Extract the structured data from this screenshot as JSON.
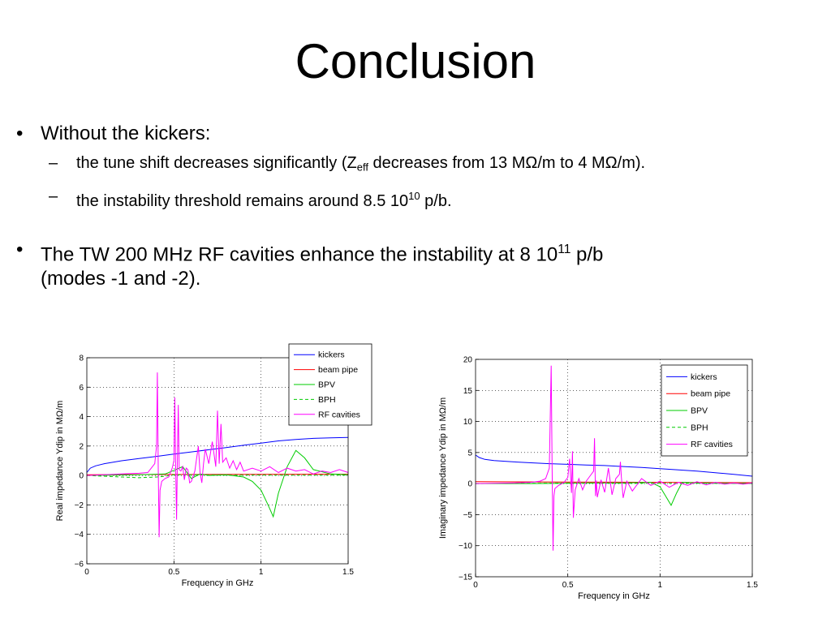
{
  "slide": {
    "title": "Conclusion",
    "bullet1": "Without the kickers:",
    "sub1_a": "the tune shift decreases significantly (Z",
    "sub1_sub": "eff",
    "sub1_b": " decreases from 13 M",
    "sub1_omega1": "Ω",
    "sub1_c": "/m to 4 M",
    "sub1_omega2": "Ω",
    "sub1_d": "/m).",
    "sub2_a": "the instability threshold remains around 8.5 10",
    "sub2_sup": "10",
    "sub2_b": " p/b.",
    "bullet2_a": "The TW 200 MHz RF cavities enhance the instability at 8 10",
    "bullet2_sup": "11",
    "bullet2_b": " p/b",
    "bullet2_line2": "(modes -1 and -2).",
    "bullet_mark": "•",
    "dash_mark": "–"
  },
  "chart_data": [
    {
      "type": "line",
      "xlabel": "Frequency in GHz",
      "ylabel": "Real impedance Ydip in MΩ/m",
      "xlim": [
        0,
        1.5
      ],
      "ylim": [
        -6,
        8
      ],
      "xticks": [
        0,
        0.5,
        1,
        1.5
      ],
      "xtick_labels": [
        "0",
        "0.5",
        "1",
        "1.5"
      ],
      "yticks": [
        -6,
        -4,
        -2,
        0,
        2,
        4,
        6,
        8
      ],
      "ytick_labels": [
        "−6",
        "−4",
        "−2",
        "0",
        "2",
        "4",
        "6",
        "8"
      ],
      "grid": true,
      "legend_position": "top-right",
      "series": [
        {
          "name": "kickers",
          "color": "#0000ff",
          "style": "solid",
          "x": [
            0,
            0.02,
            0.05,
            0.1,
            0.2,
            0.3,
            0.4,
            0.5,
            0.6,
            0.7,
            0.8,
            0.9,
            1.0,
            1.1,
            1.2,
            1.3,
            1.4,
            1.5
          ],
          "y": [
            0.2,
            0.5,
            0.65,
            0.8,
            1.0,
            1.15,
            1.3,
            1.45,
            1.6,
            1.75,
            1.9,
            2.05,
            2.2,
            2.35,
            2.45,
            2.52,
            2.56,
            2.58
          ]
        },
        {
          "name": "beam pipe",
          "color": "#ff0000",
          "style": "solid",
          "x": [
            0,
            0.5,
            1.0,
            1.5
          ],
          "y": [
            0.05,
            0.07,
            0.08,
            0.09
          ]
        },
        {
          "name": "BPV",
          "color": "#00cc00",
          "style": "solid",
          "x": [
            0,
            0.3,
            0.45,
            0.55,
            0.6,
            0.65,
            0.7,
            0.8,
            0.9,
            0.95,
            1.0,
            1.04,
            1.07,
            1.1,
            1.15,
            1.2,
            1.25,
            1.3,
            1.4,
            1.5
          ],
          "y": [
            0,
            0.05,
            0.1,
            0.6,
            -0.2,
            0.1,
            0,
            0.05,
            -0.1,
            -0.4,
            -1.0,
            -2.0,
            -2.8,
            -1.2,
            0.6,
            1.7,
            1.2,
            0.4,
            0.1,
            0.05
          ]
        },
        {
          "name": "BPH",
          "color": "#00cc00",
          "style": "dashed",
          "x": [
            0,
            0.2,
            0.3,
            0.4,
            0.45,
            0.5,
            0.6,
            0.8,
            1.0,
            1.2,
            1.5
          ],
          "y": [
            0,
            -0.1,
            -0.15,
            -0.1,
            -0.05,
            0.05,
            0.05,
            0.02,
            0.03,
            0.02,
            0.02
          ]
        },
        {
          "name": "RF cavities",
          "color": "#ff00ff",
          "style": "solid",
          "x": [
            0,
            0.1,
            0.2,
            0.3,
            0.35,
            0.39,
            0.4,
            0.405,
            0.41,
            0.415,
            0.42,
            0.43,
            0.45,
            0.47,
            0.49,
            0.5,
            0.505,
            0.51,
            0.515,
            0.52,
            0.525,
            0.53,
            0.54,
            0.55,
            0.56,
            0.57,
            0.58,
            0.59,
            0.6,
            0.62,
            0.64,
            0.65,
            0.66,
            0.67,
            0.68,
            0.7,
            0.72,
            0.74,
            0.75,
            0.76,
            0.77,
            0.78,
            0.8,
            0.82,
            0.84,
            0.86,
            0.88,
            0.9,
            0.95,
            1.0,
            1.05,
            1.1,
            1.15,
            1.2,
            1.25,
            1.3,
            1.35,
            1.4,
            1.45,
            1.5
          ],
          "y": [
            0,
            0.05,
            0.1,
            0.15,
            0.2,
            0.8,
            2.0,
            7.0,
            0.5,
            -4.2,
            -1.0,
            -0.4,
            -0.2,
            -0.1,
            0.5,
            1.0,
            5.3,
            0.5,
            -3.0,
            1.2,
            4.8,
            0.4,
            0.3,
            0.6,
            -0.3,
            0.5,
            0.4,
            -0.5,
            -0.4,
            0.3,
            2.0,
            0.2,
            -0.5,
            0.8,
            1.8,
            0.8,
            2.3,
            0.6,
            4.4,
            0.8,
            3.5,
            0.9,
            1.2,
            0.5,
            1.0,
            0.4,
            0.9,
            0.3,
            0.5,
            0.3,
            0.6,
            0.2,
            0.5,
            0.3,
            0.4,
            0.1,
            0.3,
            0.2,
            0.4,
            0.2
          ]
        }
      ]
    },
    {
      "type": "line",
      "xlabel": "Frequency in GHz",
      "ylabel": "Imaginary impedance Ydip in MΩ/m",
      "xlim": [
        0,
        1.5
      ],
      "ylim": [
        -15,
        20
      ],
      "xticks": [
        0,
        0.5,
        1,
        1.5
      ],
      "xtick_labels": [
        "0",
        "0.5",
        "1",
        "1.5"
      ],
      "yticks": [
        -15,
        -10,
        -5,
        0,
        5,
        10,
        15,
        20
      ],
      "ytick_labels": [
        "−15",
        "−10",
        "−5",
        "0",
        "5",
        "10",
        "15",
        "20"
      ],
      "grid": true,
      "legend_position": "top-right",
      "series": [
        {
          "name": "kickers",
          "color": "#0000ff",
          "style": "solid",
          "x": [
            0,
            0.02,
            0.05,
            0.1,
            0.2,
            0.3,
            0.4,
            0.5,
            0.6,
            0.7,
            0.8,
            0.9,
            1.0,
            1.1,
            1.2,
            1.3,
            1.4,
            1.5
          ],
          "y": [
            4.6,
            4.2,
            3.9,
            3.7,
            3.5,
            3.35,
            3.2,
            3.1,
            3.0,
            2.9,
            2.75,
            2.6,
            2.4,
            2.2,
            2.0,
            1.75,
            1.5,
            1.2
          ]
        },
        {
          "name": "beam pipe",
          "color": "#ff0000",
          "style": "solid",
          "x": [
            0,
            0.5,
            1.0,
            1.5
          ],
          "y": [
            0.3,
            0.25,
            0.2,
            0.15
          ]
        },
        {
          "name": "BPV",
          "color": "#00cc00",
          "style": "solid",
          "x": [
            0,
            0.3,
            0.5,
            0.6,
            0.8,
            0.95,
            1.0,
            1.03,
            1.06,
            1.09,
            1.12,
            1.2,
            1.3,
            1.5
          ],
          "y": [
            0,
            0,
            0.05,
            0.1,
            0.1,
            0.2,
            -0.5,
            -2.0,
            -3.5,
            -1.5,
            0.2,
            0.1,
            0.05,
            0
          ]
        },
        {
          "name": "BPH",
          "color": "#00cc00",
          "style": "dashed",
          "x": [
            0,
            0.3,
            0.5,
            0.8,
            1.0,
            1.2,
            1.5
          ],
          "y": [
            0,
            0.05,
            0.1,
            0.05,
            0.05,
            0.05,
            0.05
          ]
        },
        {
          "name": "RF cavities",
          "color": "#ff00ff",
          "style": "solid",
          "x": [
            0,
            0.1,
            0.2,
            0.3,
            0.35,
            0.38,
            0.4,
            0.41,
            0.415,
            0.42,
            0.425,
            0.43,
            0.45,
            0.48,
            0.5,
            0.51,
            0.52,
            0.525,
            0.53,
            0.54,
            0.56,
            0.58,
            0.6,
            0.62,
            0.64,
            0.645,
            0.65,
            0.655,
            0.66,
            0.68,
            0.7,
            0.72,
            0.74,
            0.76,
            0.78,
            0.785,
            0.79,
            0.8,
            0.82,
            0.85,
            0.9,
            0.95,
            1.0,
            1.05,
            1.1,
            1.15,
            1.2,
            1.25,
            1.3,
            1.35,
            1.4,
            1.45,
            1.5
          ],
          "y": [
            0,
            0.05,
            0.1,
            0.2,
            0.4,
            0.8,
            2.5,
            19.0,
            3.0,
            -10.8,
            -2.0,
            -0.8,
            -0.3,
            0.2,
            1.0,
            4.0,
            -1.5,
            5.2,
            -5.5,
            -1.0,
            0.8,
            -1.0,
            0.4,
            1.2,
            2.0,
            7.3,
            -2.0,
            0.5,
            -2.2,
            0.6,
            -1.4,
            2.5,
            -1.8,
            0.8,
            1.5,
            3.5,
            1.2,
            -2.3,
            0.4,
            -1.2,
            0.8,
            -0.3,
            0.4,
            -0.6,
            0.2,
            -0.3,
            0.3,
            -0.2,
            0.2,
            -0.1,
            0.1,
            -0.1,
            0.1
          ]
        }
      ]
    }
  ]
}
